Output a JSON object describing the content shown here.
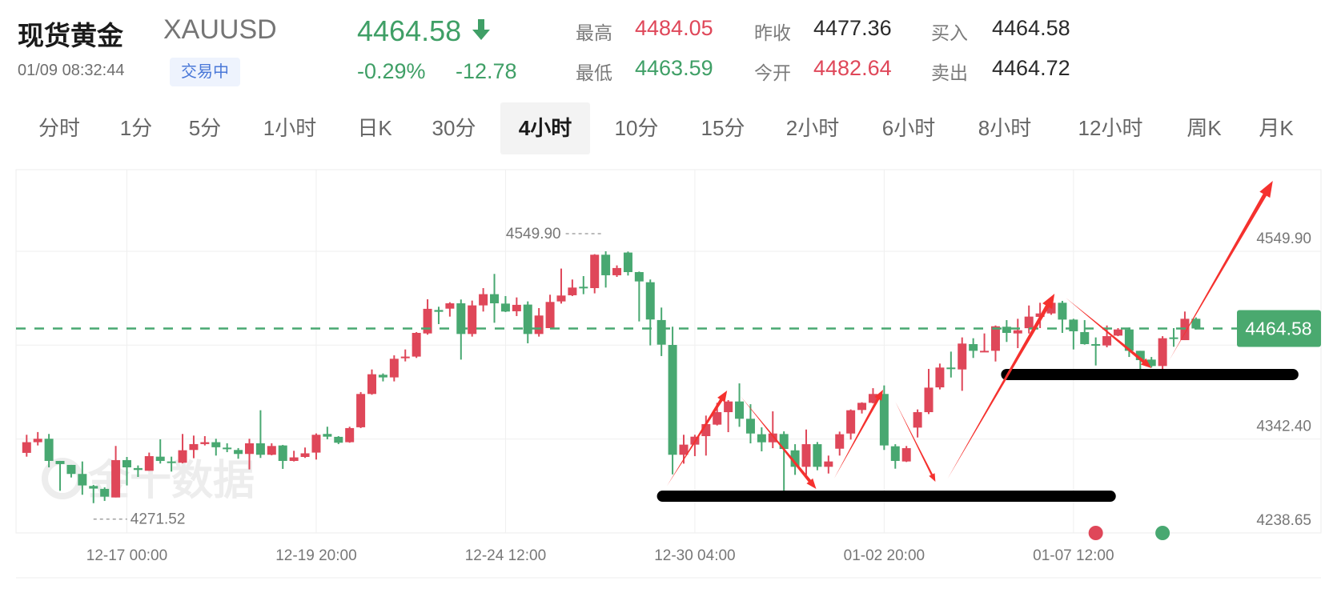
{
  "header": {
    "title": "现货黄金",
    "symbol": "XAUUSD",
    "price": "4464.58",
    "direction_icon": "arrow-down-icon",
    "datetime": "01/09 08:32:44",
    "status_badge": "交易中",
    "change_pct": "-0.29%",
    "change_abs": "-12.78"
  },
  "stats": [
    {
      "label": "最高",
      "value": "4484.05",
      "color": "red"
    },
    {
      "label": "最低",
      "value": "4463.59",
      "color": "green"
    },
    {
      "label": "昨收",
      "value": "4477.36",
      "color": "dark"
    },
    {
      "label": "今开",
      "value": "4482.64",
      "color": "red"
    },
    {
      "label": "买入",
      "value": "4464.58",
      "color": "dark"
    },
    {
      "label": "卖出",
      "value": "4464.72",
      "color": "dark"
    }
  ],
  "tabs": [
    {
      "label": "分时"
    },
    {
      "label": "1分"
    },
    {
      "label": "5分"
    },
    {
      "label": "1小时"
    },
    {
      "label": "日K"
    },
    {
      "label": "30分"
    },
    {
      "label": "4小时",
      "active": true
    },
    {
      "label": "10分"
    },
    {
      "label": "15分"
    },
    {
      "label": "2小时"
    },
    {
      "label": "6小时"
    },
    {
      "label": "8小时"
    },
    {
      "label": "12小时"
    },
    {
      "label": "周K"
    },
    {
      "label": "月K"
    }
  ],
  "colors": {
    "up": "#df4759",
    "down": "#48a871",
    "accent_badge": "#4aa96f",
    "annotation_arrow": "#f5312e",
    "annotation_line": "#000000"
  },
  "watermark": "金十数据",
  "chart_data": {
    "type": "candlestick",
    "interval": "4小时",
    "up_color_convention": "red = rise, green = fall",
    "ylim": [
      4238.65,
      4640.1
    ],
    "y_gridlines": [
      4549.9,
      4446.15,
      4342.4,
      4238.65
    ],
    "y_tick_labels": [
      "4549.90",
      "4342.40",
      "4238.65"
    ],
    "last_price": 4464.58,
    "last_price_label": "4464.58",
    "high_marker": {
      "label": "4549.90",
      "bar_index": 52,
      "value": 4549.9
    },
    "low_marker": {
      "label": "4271.52",
      "bar_index": 6,
      "value": 4271.52
    },
    "x_ticks": [
      {
        "label": "12-17 00:00",
        "bar_index": 9
      },
      {
        "label": "12-19 20:00",
        "bar_index": 26
      },
      {
        "label": "12-24 12:00",
        "bar_index": 43
      },
      {
        "label": "12-30 04:00",
        "bar_index": 60
      },
      {
        "label": "01-02 20:00",
        "bar_index": 77
      },
      {
        "label": "01-07 12:00",
        "bar_index": 94
      }
    ],
    "ohlc_fields": [
      "open",
      "high",
      "low",
      "close"
    ],
    "candles": [
      [
        4327.1,
        4347.1,
        4322.9,
        4338.9
      ],
      [
        4338.9,
        4350.1,
        4335.3,
        4342.7
      ],
      [
        4342.7,
        4348.0,
        4311.1,
        4318.2
      ],
      [
        4318.2,
        4318.2,
        4285.2,
        4314.7
      ],
      [
        4313.8,
        4313.8,
        4299.9,
        4303.8
      ],
      [
        4303.8,
        4317.6,
        4280.8,
        4291.1
      ],
      [
        4290.5,
        4291.7,
        4271.52,
        4287.6
      ],
      [
        4287.3,
        4289.0,
        4274.0,
        4278.7
      ],
      [
        4277.8,
        4334.7,
        4277.8,
        4319.1
      ],
      [
        4319.1,
        4322.6,
        4291.1,
        4311.1
      ],
      [
        4310.3,
        4313.2,
        4300.5,
        4308.2
      ],
      [
        4307.3,
        4327.4,
        4307.3,
        4323.5
      ],
      [
        4322.9,
        4342.1,
        4315.3,
        4318.2
      ],
      [
        4317.6,
        4322.9,
        4306.4,
        4316.7
      ],
      [
        4316.2,
        4348.0,
        4315.6,
        4330.0
      ],
      [
        4330.3,
        4346.2,
        4321.2,
        4336.8
      ],
      [
        4336.8,
        4345.6,
        4335.3,
        4338.9
      ],
      [
        4338.9,
        4342.7,
        4324.1,
        4333.3
      ],
      [
        4332.9,
        4337.7,
        4327.9,
        4332.4
      ],
      [
        4330.3,
        4332.4,
        4320.6,
        4325.9
      ],
      [
        4325.9,
        4342.7,
        4308.8,
        4337.7
      ],
      [
        4337.7,
        4374.2,
        4321.5,
        4325.0
      ],
      [
        4325.0,
        4337.7,
        4324.4,
        4334.7
      ],
      [
        4335.3,
        4335.9,
        4309.4,
        4318.2
      ],
      [
        4318.2,
        4329.4,
        4317.6,
        4322.1
      ],
      [
        4322.6,
        4333.0,
        4321.5,
        4326.6
      ],
      [
        4327.4,
        4348.6,
        4319.7,
        4347.1
      ],
      [
        4348.0,
        4356.0,
        4342.1,
        4345.0
      ],
      [
        4344.8,
        4345.6,
        4336.8,
        4338.3
      ],
      [
        4338.9,
        4356.0,
        4338.3,
        4354.5
      ],
      [
        4355.4,
        4394.3,
        4354.5,
        4392.2
      ],
      [
        4392.2,
        4419.3,
        4391.3,
        4414.0
      ],
      [
        4413.4,
        4414.9,
        4406.1,
        4410.5
      ],
      [
        4410.5,
        4434.9,
        4406.1,
        4431.1
      ],
      [
        4431.7,
        4441.4,
        4428.2,
        4433.5
      ],
      [
        4433.5,
        4460.6,
        4432.0,
        4459.7
      ],
      [
        4459.1,
        4496.9,
        4457.7,
        4486.3
      ],
      [
        4485.0,
        4488.6,
        4469.4,
        4483.0
      ],
      [
        4486.5,
        4493.6,
        4477.7,
        4492.4
      ],
      [
        4492.4,
        4496.6,
        4430.2,
        4458.5
      ],
      [
        4458.5,
        4495.4,
        4455.6,
        4490.1
      ],
      [
        4490.1,
        4509.2,
        4483.3,
        4502.5
      ],
      [
        4502.5,
        4524.9,
        4470.9,
        4492.4
      ],
      [
        4492.1,
        4500.4,
        4482.7,
        4483.3
      ],
      [
        4483.6,
        4498.9,
        4478.3,
        4490.7
      ],
      [
        4491.0,
        4494.5,
        4448.2,
        4458.5
      ],
      [
        4458.5,
        4487.1,
        4455.6,
        4478.9
      ],
      [
        4465.0,
        4501.9,
        4465.0,
        4493.9
      ],
      [
        4494.5,
        4530.8,
        4492.1,
        4501.0
      ],
      [
        4501.3,
        4518.7,
        4500.4,
        4509.8
      ],
      [
        4510.7,
        4522.5,
        4502.5,
        4510.1
      ],
      [
        4509.2,
        4546.7,
        4503.4,
        4546.1
      ],
      [
        4546.1,
        4549.9,
        4509.8,
        4523.4
      ],
      [
        4523.4,
        4534.3,
        4521.6,
        4531.4
      ],
      [
        4548.5,
        4549.6,
        4523.1,
        4526.9
      ],
      [
        4526.9,
        4527.5,
        4472.4,
        4516.6
      ],
      [
        4515.7,
        4518.7,
        4445.9,
        4474.5
      ],
      [
        4473.9,
        4487.7,
        4434.1,
        4446.7
      ],
      [
        4446.4,
        4466.5,
        4303.4,
        4325.0
      ],
      [
        4325.0,
        4347.1,
        4315.2,
        4336.2
      ],
      [
        4336.2,
        4347.1,
        4323.5,
        4345.0
      ],
      [
        4345.6,
        4368.3,
        4324.1,
        4358.9
      ],
      [
        4358.3,
        4382.4,
        4357.4,
        4372.1
      ],
      [
        4372.1,
        4385.4,
        4350.0,
        4383.9
      ],
      [
        4383.9,
        4403.9,
        4355.9,
        4364.8
      ],
      [
        4364.8,
        4380.9,
        4337.6,
        4348.5
      ],
      [
        4347.7,
        4355.3,
        4328.8,
        4338.8
      ],
      [
        4338.8,
        4373.0,
        4332.3,
        4348.5
      ],
      [
        4347.9,
        4350.9,
        4285.2,
        4331.4
      ],
      [
        4329.9,
        4336.7,
        4302.8,
        4311.7
      ],
      [
        4311.7,
        4352.9,
        4302.8,
        4336.7
      ],
      [
        4336.7,
        4339.1,
        4307.9,
        4311.7
      ],
      [
        4311.7,
        4324.1,
        4304.3,
        4317.6
      ],
      [
        4331.7,
        4350.6,
        4324.1,
        4347.7
      ],
      [
        4348.5,
        4375.1,
        4341.8,
        4374.2
      ],
      [
        4374.5,
        4383.0,
        4370.6,
        4382.4
      ],
      [
        4382.4,
        4398.6,
        4381.8,
        4392.2
      ],
      [
        4392.2,
        4401.6,
        4330.3,
        4335.3
      ],
      [
        4334.4,
        4336.7,
        4309.6,
        4318.2
      ],
      [
        4317.6,
        4334.7,
        4317.0,
        4332.3
      ],
      [
        4355.0,
        4375.1,
        4344.1,
        4372.1
      ],
      [
        4372.1,
        4419.9,
        4370.0,
        4399.2
      ],
      [
        4399.5,
        4425.8,
        4397.2,
        4421.4
      ],
      [
        4421.4,
        4439.0,
        4410.4,
        4419.9
      ],
      [
        4419.3,
        4454.7,
        4395.7,
        4447.9
      ],
      [
        4447.3,
        4453.8,
        4432.0,
        4439.9
      ],
      [
        4439.0,
        4459.1,
        4438.5,
        4439.9
      ],
      [
        4439.9,
        4467.9,
        4428.1,
        4467.0
      ],
      [
        4466.5,
        4473.8,
        4449.7,
        4459.7
      ],
      [
        4459.1,
        4475.3,
        4442.9,
        4462.6
      ],
      [
        4464.9,
        4490.0,
        4459.1,
        4477.7
      ],
      [
        4477.4,
        4493.0,
        4465.0,
        4481.2
      ],
      [
        4481.2,
        4493.9,
        4479.7,
        4493.0
      ],
      [
        4493.0,
        4495.1,
        4459.7,
        4474.4
      ],
      [
        4474.4,
        4475.3,
        4441.4,
        4461.5
      ],
      [
        4460.6,
        4473.8,
        4446.7,
        4447.3
      ],
      [
        4447.3,
        4454.7,
        4423.7,
        4446.4
      ],
      [
        4445.8,
        4467.9,
        4443.8,
        4456.1
      ],
      [
        4456.7,
        4465.0,
        4456.1,
        4463.5
      ],
      [
        4463.5,
        4465.6,
        4433.1,
        4439.9
      ],
      [
        4439.9,
        4439.9,
        4417.8,
        4429.6
      ],
      [
        4430.2,
        4433.1,
        4421.4,
        4423.1
      ],
      [
        4423.1,
        4456.1,
        4418.4,
        4453.8
      ],
      [
        4454.7,
        4465.0,
        4444.4,
        4453.8
      ],
      [
        4451.7,
        4483.3,
        4451.7,
        4475.3
      ],
      [
        4475.3,
        4476.8,
        4463.5,
        4464.58
      ]
    ],
    "event_markers": [
      {
        "bar_index": 96,
        "color": "red"
      },
      {
        "bar_index": 102,
        "color": "green"
      }
    ],
    "annotations": {
      "arrows": [
        {
          "from": [
            57.5,
            4290.7
          ],
          "to": [
            62.9,
            4396.0
          ]
        },
        {
          "from": [
            64.1,
            4389.8
          ],
          "to": [
            70.9,
            4287.2
          ]
        },
        {
          "from": [
            72.5,
            4298.7
          ],
          "to": [
            76.9,
            4396.9
          ]
        },
        {
          "from": [
            78.0,
            4383.6
          ],
          "to": [
            81.6,
            4295.2
          ]
        },
        {
          "from": [
            82.7,
            4298.7
          ],
          "to": [
            92.3,
            4503.0
          ]
        },
        {
          "from": [
            93.3,
            4498.6
          ],
          "to": [
            101.0,
            4420.8
          ]
        },
        {
          "from": [
            102.6,
            4429.6
          ],
          "to": [
            111.9,
            4627.7
          ]
        }
      ],
      "support_lines": [
        {
          "from": [
            57.1,
            4279.2
          ],
          "to": [
            97.3,
            4279.2
          ]
        },
        {
          "from": [
            88.0,
            4413.7
          ],
          "to": [
            113.7,
            4413.7
          ]
        }
      ]
    }
  }
}
